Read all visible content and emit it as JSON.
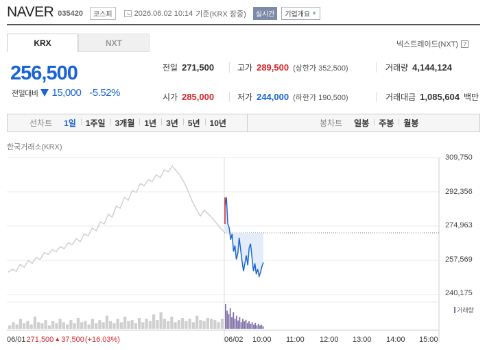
{
  "header": {
    "name": "NAVER",
    "code": "035420",
    "market": "코스피",
    "datetime": "2026.06.02 10:14",
    "basis": "기준(KRX 장중)",
    "realtime": "실시간",
    "company_btn": "기업개요"
  },
  "tabs": [
    {
      "label": "KRX",
      "active": true
    },
    {
      "label": "NXT",
      "active": false
    }
  ],
  "nxt_link": "넥스트레이드(NXT)",
  "price": {
    "current": "256,500",
    "change_label": "전일대비",
    "change": "15,000",
    "change_pct": "-5.52%"
  },
  "stats": {
    "prev_close": {
      "label": "전일",
      "value": "271,500"
    },
    "high": {
      "label": "고가",
      "value": "289,500",
      "sub": "(상한가 352,500)"
    },
    "volume": {
      "label": "거래량",
      "value": "4,144,124"
    },
    "open": {
      "label": "시가",
      "value": "285,000"
    },
    "low": {
      "label": "저가",
      "value": "244,000",
      "sub": "(하한가 190,500)"
    },
    "amount": {
      "label": "거래대금",
      "value": "1,085,604",
      "unit": "백만"
    }
  },
  "periods": {
    "label": "선차트",
    "items": [
      "1일",
      "1주일",
      "3개월",
      "1년",
      "3년",
      "5년",
      "10년"
    ],
    "active": "1일"
  },
  "candle": {
    "label": "봉차트",
    "items": [
      "일봉",
      "주봉",
      "월봉"
    ]
  },
  "chart_caption": "한국거래소(KRX)",
  "chart_data": {
    "type": "line",
    "yticks": [
      "309,750",
      "292,356",
      "274,963",
      "257,569",
      "240,175"
    ],
    "ylim": [
      240175,
      309750
    ],
    "x_labels": [
      "06/02",
      "10:00",
      "11:00",
      "12:00",
      "13:00",
      "14:00",
      "15:00"
    ],
    "reference_price": 271500,
    "series": [
      {
        "values": [
          251500,
          253000,
          252000,
          255500,
          254000,
          257500,
          256000,
          259000,
          258000,
          261500,
          260500,
          263000,
          262000,
          264500,
          263500,
          266500,
          265500,
          268500,
          267000,
          271000,
          270000,
          274000,
          272500,
          277000,
          276000,
          281000,
          279500,
          285000,
          284000,
          289500,
          288000,
          293000,
          292000,
          296500,
          295500,
          298500,
          297500,
          301000,
          299500,
          303500,
          302500,
          305500,
          303000,
          300500,
          297000,
          292500,
          287500,
          283500,
          280000,
          283000,
          281000,
          279000,
          276500,
          274000,
          272000
        ]
      },
      {
        "values": [
          285000,
          289500,
          276000,
          274000,
          268000,
          271000,
          262000,
          265000,
          258000,
          261000,
          269000,
          263000,
          257000,
          252000,
          256000,
          260000,
          255000,
          264000,
          266000,
          259000,
          252000,
          256000,
          250500,
          253000,
          249500,
          251500,
          254500,
          256500
        ]
      }
    ],
    "volume": {
      "prev": [
        3,
        6,
        4,
        9,
        5,
        7,
        4,
        11,
        6,
        5,
        8,
        3,
        7,
        5,
        9,
        6,
        4,
        8,
        5,
        10,
        6,
        7,
        4,
        9,
        5,
        8,
        6,
        12,
        7,
        5,
        9,
        6,
        11,
        7,
        8,
        5,
        10,
        6,
        9,
        7,
        13,
        8,
        15,
        9,
        7,
        11,
        6,
        8,
        10,
        7,
        9,
        6,
        12,
        8,
        7,
        10,
        9,
        8,
        6,
        9
      ],
      "today": [
        30,
        22,
        18,
        25,
        14,
        20,
        12,
        16,
        10,
        14,
        8,
        12,
        9,
        11,
        7,
        9,
        6,
        8,
        5,
        7,
        4,
        6,
        4,
        5,
        3
      ]
    }
  },
  "volume_label": "거래량",
  "prev_summary": {
    "date": "06/01",
    "price": "271,500",
    "change": "37,500",
    "pct": "(+16.03%)"
  },
  "colors": {
    "up": "#d8232a",
    "down": "#1864d6",
    "volume": "#7f6fa8"
  },
  "icons": {
    "down": "down-triangle-icon",
    "up": "up-triangle-icon"
  }
}
